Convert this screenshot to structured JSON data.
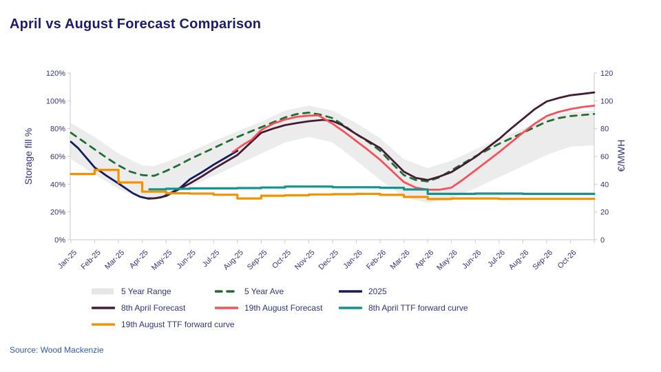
{
  "page": {
    "title": "April vs August Forecast Comparison",
    "source": "Source: Wood Mackenzie"
  },
  "colors": {
    "title": "#1c1c6b",
    "axis_text": "#32327e",
    "axis_line": "#c9c9c9",
    "source_text": "#2d59a8",
    "band": "#ececec",
    "five_year_ave": "#1e6e33",
    "line_2025": "#141a5e",
    "april_forecast": "#451a33",
    "august_forecast": "#f7505a",
    "april_ttf": "#10948f",
    "august_ttf": "#f39200"
  },
  "chart_data": {
    "type": "line",
    "title": "April vs August Forecast Comparison",
    "x_axis": {
      "tick_labels": [
        "Jan-25",
        "Feb-25",
        "Mar-25",
        "Apr-25",
        "May-25",
        "Jun-25",
        "Jul-25",
        "Aug-25",
        "Sep-25",
        "Oct-25",
        "Nov-25",
        "Dec-25",
        "Jan-26",
        "Feb-26",
        "Mar-26",
        "Apr-26",
        "May-26",
        "Jun-26",
        "Jul-26",
        "Aug-26",
        "Sep-26",
        "Oct-26"
      ]
    },
    "y_left": {
      "label": "Storage fill %",
      "ticks": [
        "0%",
        "20%",
        "40%",
        "60%",
        "80%",
        "100%",
        "120%"
      ],
      "range": [
        0,
        120
      ],
      "grid": false
    },
    "y_right": {
      "label": "€/MWH",
      "ticks": [
        "0",
        "20",
        "40",
        "60",
        "80",
        "100",
        "120"
      ],
      "range": [
        0,
        120
      ]
    },
    "band": {
      "name": "5 Year Range",
      "x": [
        0,
        1,
        2,
        3,
        3.5,
        4,
        5,
        6,
        7,
        8,
        9,
        10,
        11,
        12,
        13,
        14,
        15,
        16,
        17,
        18,
        19,
        20,
        21,
        22
      ],
      "upper": [
        84,
        74,
        62,
        53.5,
        53,
        56,
        63,
        71,
        78,
        85,
        93,
        96.5,
        93,
        84,
        73,
        58,
        51.5,
        57,
        65,
        73,
        80,
        88,
        92,
        93
      ],
      "lower": [
        58,
        47,
        36.5,
        29.5,
        29,
        31,
        38,
        46,
        54,
        62,
        70,
        74,
        70,
        57,
        43,
        31,
        26.5,
        30,
        37,
        45,
        53,
        61,
        67,
        68
      ]
    },
    "series": [
      {
        "key": "five_year_ave",
        "name": "5 Year Ave",
        "axis": "left",
        "style": "dashed",
        "stroke_width": 2.8,
        "points": [
          [
            0,
            77
          ],
          [
            0.5,
            71
          ],
          [
            1,
            65
          ],
          [
            1.5,
            59
          ],
          [
            2,
            53.5
          ],
          [
            2.5,
            49
          ],
          [
            3,
            46.5
          ],
          [
            3.5,
            46
          ],
          [
            4,
            49.5
          ],
          [
            4.5,
            53.5
          ],
          [
            5,
            58
          ],
          [
            5.5,
            62
          ],
          [
            6,
            66
          ],
          [
            6.5,
            70
          ],
          [
            7,
            74
          ],
          [
            7.5,
            77.5
          ],
          [
            8,
            81
          ],
          [
            8.5,
            84.5
          ],
          [
            9,
            88
          ],
          [
            9.5,
            90.5
          ],
          [
            10,
            91.5
          ],
          [
            10.5,
            90
          ],
          [
            11,
            87.5
          ],
          [
            11.5,
            82
          ],
          [
            12,
            76
          ],
          [
            12.5,
            70.5
          ],
          [
            13,
            64
          ],
          [
            13.5,
            55
          ],
          [
            14,
            46.5
          ],
          [
            14.5,
            43
          ],
          [
            15,
            42
          ],
          [
            15.5,
            45
          ],
          [
            16,
            50
          ],
          [
            16.5,
            55
          ],
          [
            17,
            60
          ],
          [
            17.5,
            64.5
          ],
          [
            18,
            69
          ],
          [
            18.5,
            73
          ],
          [
            19,
            77
          ],
          [
            19.5,
            81
          ],
          [
            20,
            85
          ],
          [
            20.5,
            87.5
          ],
          [
            21,
            89
          ],
          [
            22,
            90.5
          ]
        ]
      },
      {
        "key": "line_2025",
        "name": "2025",
        "axis": "left",
        "style": "solid",
        "stroke_width": 2.8,
        "points": [
          [
            0,
            70.5
          ],
          [
            0.3,
            66
          ],
          [
            0.5,
            62
          ],
          [
            1,
            52
          ],
          [
            1.3,
            48.5
          ],
          [
            1.5,
            46
          ],
          [
            2,
            40.5
          ],
          [
            2.3,
            37
          ],
          [
            2.6,
            33.5
          ],
          [
            2.9,
            31
          ],
          [
            3.2,
            29.8
          ],
          [
            3.5,
            29.8
          ],
          [
            3.8,
            30.5
          ],
          [
            4,
            32
          ],
          [
            4.3,
            34.5
          ],
          [
            4.6,
            37.5
          ],
          [
            5,
            43.5
          ],
          [
            5.5,
            48.5
          ],
          [
            6,
            54
          ],
          [
            6.5,
            59
          ],
          [
            7,
            64
          ]
        ]
      },
      {
        "key": "april_forecast",
        "name": "8th April Forecast",
        "axis": "left",
        "style": "solid",
        "stroke_width": 2.8,
        "points": [
          [
            3.25,
            29.5
          ],
          [
            3.6,
            30
          ],
          [
            4,
            31.5
          ],
          [
            4.5,
            36
          ],
          [
            5,
            40.5
          ],
          [
            5.5,
            45.5
          ],
          [
            6,
            51
          ],
          [
            6.5,
            56
          ],
          [
            7,
            61
          ],
          [
            7.5,
            69
          ],
          [
            8,
            77
          ],
          [
            8.5,
            80
          ],
          [
            9,
            82.5
          ],
          [
            9.5,
            84
          ],
          [
            10,
            85.3
          ],
          [
            10.6,
            86.3
          ],
          [
            11,
            85.5
          ],
          [
            11.4,
            82.5
          ],
          [
            12,
            76
          ],
          [
            12.5,
            71
          ],
          [
            13,
            66
          ],
          [
            13.5,
            57.5
          ],
          [
            14,
            49
          ],
          [
            14.5,
            44.5
          ],
          [
            15,
            43
          ],
          [
            15.5,
            45.5
          ],
          [
            16,
            48.7
          ],
          [
            16.5,
            54
          ],
          [
            17,
            59.5
          ],
          [
            17.5,
            66
          ],
          [
            18,
            72.5
          ],
          [
            18.5,
            80
          ],
          [
            19,
            87
          ],
          [
            19.5,
            94
          ],
          [
            20,
            99.5
          ],
          [
            20.5,
            102
          ],
          [
            21,
            104
          ],
          [
            21.5,
            105
          ],
          [
            22,
            106
          ]
        ]
      },
      {
        "key": "august_forecast",
        "name": "19th August Forecast",
        "axis": "left",
        "style": "solid",
        "stroke_width": 2.8,
        "points": [
          [
            6.8,
            63
          ],
          [
            7,
            65.5
          ],
          [
            7.3,
            69
          ],
          [
            7.6,
            72
          ],
          [
            8,
            79
          ],
          [
            8.5,
            83.5
          ],
          [
            9,
            86.5
          ],
          [
            9.5,
            88.5
          ],
          [
            10,
            89.3
          ],
          [
            10.4,
            89.6
          ],
          [
            11,
            83.5
          ],
          [
            11.5,
            77.5
          ],
          [
            12,
            71
          ],
          [
            12.5,
            64.5
          ],
          [
            13,
            57.5
          ],
          [
            13.5,
            49.5
          ],
          [
            14,
            41.5
          ],
          [
            14.5,
            37.5
          ],
          [
            15,
            36
          ],
          [
            15.5,
            36
          ],
          [
            16,
            37.5
          ],
          [
            16.5,
            43.5
          ],
          [
            17,
            50
          ],
          [
            17.5,
            56.5
          ],
          [
            18,
            63
          ],
          [
            18.5,
            70
          ],
          [
            19,
            77
          ],
          [
            19.5,
            83.5
          ],
          [
            20,
            89
          ],
          [
            20.5,
            92
          ],
          [
            21,
            94
          ],
          [
            21.5,
            95.5
          ],
          [
            22,
            96.5
          ]
        ]
      },
      {
        "key": "april_ttf",
        "name": "8th April TTF forward curve",
        "axis": "right",
        "style": "step",
        "stroke_width": 3.2,
        "points": [
          [
            3.3,
            36.3
          ],
          [
            4,
            36.7
          ],
          [
            5,
            37
          ],
          [
            6,
            37
          ],
          [
            7,
            37.2
          ],
          [
            8,
            37.6
          ],
          [
            9,
            38.3
          ],
          [
            10,
            38.3
          ],
          [
            11,
            37.8
          ],
          [
            12,
            37.8
          ],
          [
            13,
            37.4
          ],
          [
            14,
            36.2
          ],
          [
            15,
            33
          ],
          [
            16,
            33
          ],
          [
            17,
            33.2
          ],
          [
            18,
            33.2
          ],
          [
            19,
            33
          ],
          [
            20,
            33
          ],
          [
            21,
            33
          ],
          [
            22,
            33
          ]
        ]
      },
      {
        "key": "august_ttf",
        "name": "19th August TTF forward curve",
        "axis": "right",
        "style": "step",
        "stroke_width": 3.2,
        "points": [
          [
            0,
            47.3
          ],
          [
            1,
            50.3
          ],
          [
            2,
            41.2
          ],
          [
            3,
            34.6
          ],
          [
            4,
            33.4
          ],
          [
            5,
            33.2
          ],
          [
            6,
            32.4
          ],
          [
            7,
            29.7
          ],
          [
            8,
            31.7
          ],
          [
            9,
            32
          ],
          [
            10,
            32.6
          ],
          [
            11,
            32.8
          ],
          [
            12,
            33
          ],
          [
            13,
            32.3
          ],
          [
            14,
            30.8
          ],
          [
            15,
            29.3
          ],
          [
            16,
            29.7
          ],
          [
            17,
            29.7
          ],
          [
            18,
            29.4
          ],
          [
            19,
            29.4
          ],
          [
            20,
            29.4
          ],
          [
            21,
            29.4
          ],
          [
            22,
            29.4
          ]
        ]
      }
    ],
    "legend": [
      {
        "label": "5 Year Range",
        "swatch": "band",
        "color_key": "band_swatch"
      },
      {
        "label": "5 Year Ave",
        "swatch": "dash",
        "color_key": "five_year_ave"
      },
      {
        "label": "2025",
        "swatch": "line",
        "color_key": "line_2025"
      },
      {
        "label": "8th April Forecast",
        "swatch": "line",
        "color_key": "april_forecast"
      },
      {
        "label": "19th August Forecast",
        "swatch": "line",
        "color_key": "august_forecast"
      },
      {
        "label": "8th April TTF forward curve",
        "swatch": "line",
        "color_key": "april_ttf"
      },
      {
        "label": "19th August TTF forward curve",
        "swatch": "line",
        "color_key": "august_ttf"
      }
    ],
    "legend_colors": {
      "band_swatch": "#e6e6e6",
      "five_year_ave": "#1e6e33",
      "line_2025": "#141a5e",
      "april_forecast": "#451a33",
      "august_forecast": "#f7505a",
      "april_ttf": "#10948f",
      "august_ttf": "#f39200"
    }
  }
}
